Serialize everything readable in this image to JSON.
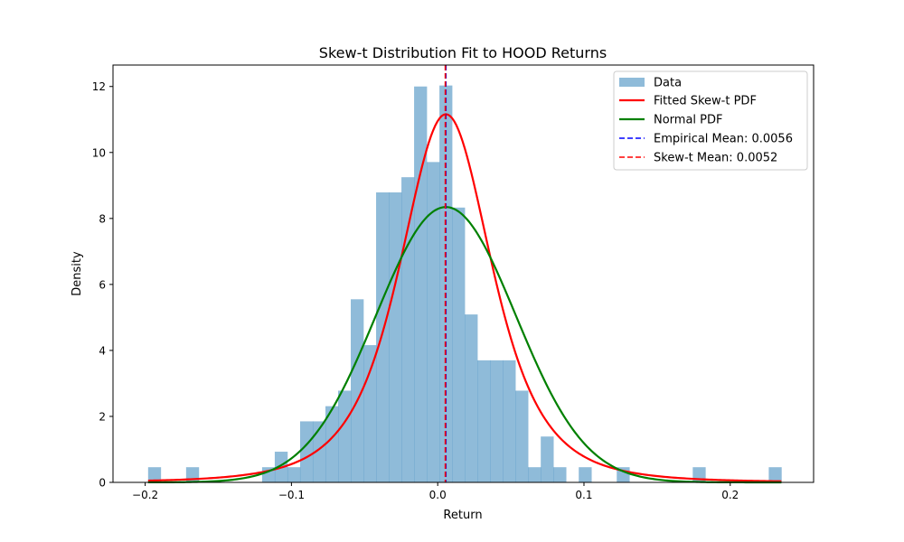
{
  "chart_data": {
    "type": "histogram",
    "title": "Skew-t Distribution Fit to HOOD Returns",
    "xlabel": "Return",
    "ylabel": "Density",
    "xlim": [
      -0.222,
      0.257
    ],
    "ylim": [
      0,
      12.65
    ],
    "x_ticks": [
      -0.2,
      -0.1,
      0.0,
      0.1,
      0.2
    ],
    "x_tick_labels": [
      "−0.2",
      "−0.1",
      "0.0",
      "0.1",
      "0.2"
    ],
    "y_ticks": [
      0,
      2,
      4,
      6,
      8,
      10,
      12
    ],
    "y_tick_labels": [
      "0",
      "2",
      "4",
      "6",
      "8",
      "10",
      "12"
    ],
    "grid": false,
    "legend_position": "top-right",
    "histogram": {
      "name": "Data",
      "color": "#1f77b4",
      "alpha": 0.5,
      "bin_start": -0.198,
      "bin_width": 0.00866,
      "densities": [
        0.46,
        0,
        0,
        0.46,
        0,
        0,
        0,
        0,
        0,
        0.46,
        0.93,
        0.46,
        1.85,
        1.85,
        2.31,
        2.78,
        5.55,
        4.16,
        8.79,
        8.79,
        9.25,
        12.0,
        9.71,
        12.03,
        8.33,
        5.09,
        3.7,
        3.7,
        3.7,
        2.78,
        0.46,
        1.39,
        0.46,
        0,
        0.46,
        0,
        0,
        0.46,
        0,
        0,
        0,
        0,
        0,
        0.46,
        0,
        0,
        0,
        0,
        0,
        0.46
      ]
    },
    "series": [
      {
        "name": "Fitted Skew-t PDF",
        "color": "#ff0000",
        "style": "solid",
        "kind": "skew_t_fit",
        "peak_x": 0.0056,
        "peak_y": 11.16,
        "x_range": [
          -0.198,
          0.235
        ]
      },
      {
        "name": "Normal PDF",
        "color": "#008000",
        "style": "solid",
        "kind": "normal_fit",
        "mean": 0.0056,
        "std": 0.0478,
        "x_range": [
          -0.198,
          0.235
        ]
      }
    ],
    "vlines": [
      {
        "name": "Empirical Mean: 0.0056",
        "x": 0.0056,
        "color": "#0000ff",
        "style": "dashed"
      },
      {
        "name": "Skew-t Mean: 0.0052",
        "x": 0.0052,
        "color": "#ff0000",
        "style": "dashed"
      }
    ],
    "legend": [
      "Data",
      "Fitted Skew-t PDF",
      "Normal PDF",
      "Empirical Mean: 0.0056",
      "Skew-t Mean: 0.0052"
    ]
  }
}
